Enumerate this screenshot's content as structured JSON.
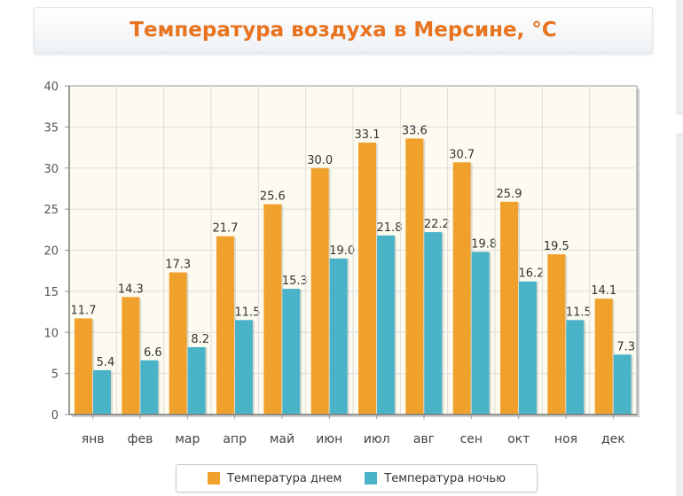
{
  "title": "Температура воздуха в Мерсине, °С",
  "chart_data": {
    "type": "bar",
    "title": "Температура воздуха в Мерсине, °С",
    "categories": [
      "янв",
      "фев",
      "мар",
      "апр",
      "май",
      "июн",
      "июл",
      "авг",
      "сен",
      "окт",
      "ноя",
      "дек"
    ],
    "series": [
      {
        "name": "Температура днем",
        "color": "#f0a12c",
        "values": [
          11.7,
          14.3,
          17.3,
          21.7,
          25.6,
          30.0,
          33.1,
          33.6,
          30.7,
          25.9,
          19.5,
          14.1
        ],
        "labels": [
          "11.7",
          "14.3",
          "17.3",
          "21.7",
          "25.6",
          "30.0",
          "33.1",
          "33.6",
          "30.7",
          "25.9",
          "19.5",
          "14.1"
        ]
      },
      {
        "name": "Температура ночью",
        "color": "#4ab3c7",
        "values": [
          5.4,
          6.6,
          8.2,
          11.5,
          15.3,
          19.0,
          21.8,
          22.2,
          19.8,
          16.2,
          11.5,
          7.3
        ],
        "labels": [
          "5.4",
          "6.6",
          "8.2",
          "11.5",
          "15.3",
          "19.0",
          "21.8",
          "22.2",
          "19.8",
          "16.2",
          "11.5",
          "7.3"
        ]
      }
    ],
    "ylim": [
      0,
      40
    ],
    "yticks": [
      "0",
      "5",
      "10",
      "15",
      "20",
      "25",
      "30",
      "35",
      "40"
    ],
    "grid": true,
    "legend": "bottom-center"
  }
}
